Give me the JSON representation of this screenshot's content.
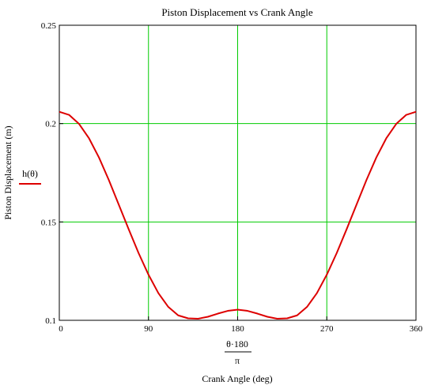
{
  "chart_data": {
    "type": "line",
    "title": "Piston Displacement vs Crank Angle",
    "xlabel_expr_numerator": "θ·180",
    "xlabel_expr_denominator": "π",
    "xlabel": "Crank Angle (deg)",
    "ylabel": "Piston Displacement (m)",
    "legend_label": "h(θ)",
    "legend_placement": "left",
    "xlim": [
      0,
      360
    ],
    "ylim": [
      0.1,
      0.25
    ],
    "xticks": [
      0,
      90,
      180,
      270,
      360
    ],
    "xtick_labels": [
      "0",
      "90",
      "180",
      "270",
      "360"
    ],
    "yticks": [
      0.1,
      0.15,
      0.2,
      0.25
    ],
    "ytick_labels": [
      "0.1",
      "0.15",
      "0.2",
      "0.25"
    ],
    "grid": true,
    "series": [
      {
        "name": "h(θ)",
        "x": [
          0,
          10,
          20,
          30,
          40,
          50,
          60,
          70,
          80,
          90,
          100,
          110,
          120,
          130,
          140,
          150,
          160,
          170,
          180,
          190,
          200,
          210,
          220,
          230,
          240,
          250,
          260,
          270,
          280,
          290,
          300,
          310,
          320,
          330,
          340,
          350,
          360
        ],
        "y": [
          0.206,
          0.2044,
          0.1998,
          0.1925,
          0.1828,
          0.1713,
          0.1588,
          0.1463,
          0.1342,
          0.1232,
          0.1138,
          0.1068,
          0.1025,
          0.101,
          0.1008,
          0.1018,
          0.1034,
          0.1048,
          0.1054,
          0.1048,
          0.1034,
          0.1018,
          0.1008,
          0.101,
          0.1025,
          0.1068,
          0.1138,
          0.1232,
          0.1342,
          0.1463,
          0.1588,
          0.1713,
          0.1828,
          0.1925,
          0.1998,
          0.2044,
          0.206
        ]
      }
    ],
    "colors": {
      "series": "#dd0000",
      "grid": "#00cc00",
      "axes": "#000000"
    }
  }
}
